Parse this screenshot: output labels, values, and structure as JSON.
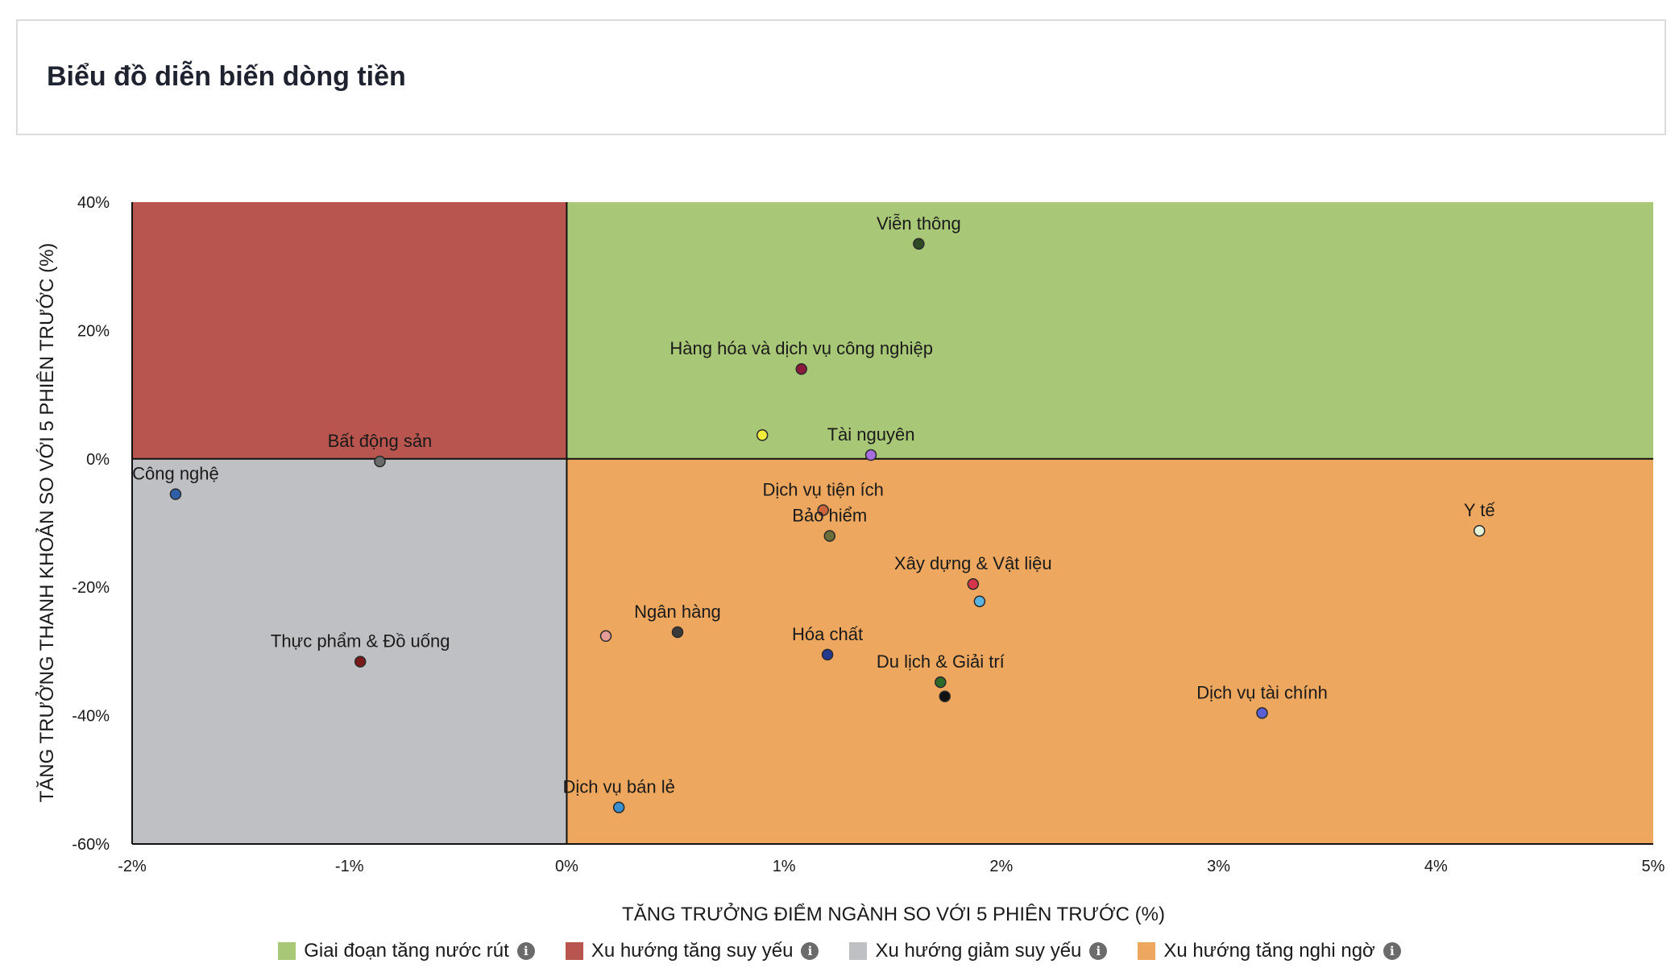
{
  "header": {
    "title": "Biểu đồ diễn biến dòng tiền"
  },
  "chart_data": {
    "type": "scatter",
    "title": "",
    "xlabel": "TĂNG TRƯỞNG ĐIỂM NGÀNH SO VỚI 5 PHIÊN TRƯỚC (%)",
    "ylabel": "TĂNG TRƯỞNG THANH KHOẢN SO VỚI 5 PHIÊN TRƯỚC (%)",
    "xlim": [
      -2,
      5
    ],
    "ylim": [
      -60,
      40
    ],
    "x_ticks": [
      -2,
      -1,
      0,
      1,
      2,
      3,
      4,
      5
    ],
    "x_tick_labels": [
      "-2%",
      "-1%",
      "0%",
      "1%",
      "2%",
      "3%",
      "4%",
      "5%"
    ],
    "y_ticks": [
      40,
      20,
      0,
      -20,
      -40,
      -60
    ],
    "y_tick_labels": [
      "40%",
      "20%",
      "0%",
      "-20%",
      "-40%",
      "-60%"
    ],
    "grid": false,
    "legend_position": "bottom",
    "quadrants": [
      {
        "name": "Giai đoạn tăng nước rút",
        "color": "#a9c877",
        "x_range": [
          0,
          5
        ],
        "y_range": [
          0,
          40
        ]
      },
      {
        "name": "Xu hướng tăng suy yếu",
        "color": "#b8554e",
        "x_range": [
          -2,
          0
        ],
        "y_range": [
          0,
          40
        ]
      },
      {
        "name": "Xu hướng giảm suy yếu",
        "color": "#bfc0c4",
        "x_range": [
          -2,
          0
        ],
        "y_range": [
          -60,
          0
        ]
      },
      {
        "name": "Xu hướng tăng nghi ngờ",
        "color": "#eda75e",
        "x_range": [
          0,
          5
        ],
        "y_range": [
          -60,
          0
        ]
      }
    ],
    "points": [
      {
        "label": "Viễn thông",
        "x": 1.62,
        "y": 33.5,
        "color": "#2e4a26"
      },
      {
        "label": "Hàng hóa và dịch vụ công nghiệp",
        "x": 1.08,
        "y": 14.0,
        "color": "#8a1b3b"
      },
      {
        "label": "",
        "x": 0.9,
        "y": 3.7,
        "color": "#f0ee3a"
      },
      {
        "label": "Tài nguyên",
        "x": 1.4,
        "y": 0.6,
        "color": "#a86ee0"
      },
      {
        "label": "Bất động sản",
        "x": -0.86,
        "y": -0.4,
        "color": "#6a6a6a"
      },
      {
        "label": "Công nghệ",
        "x": -1.8,
        "y": -5.5,
        "color": "#2f5fa8"
      },
      {
        "label": "Dịch vụ tiện ích",
        "x": 1.18,
        "y": -8.0,
        "color": "#c9643c"
      },
      {
        "label": "Bảo hiểm",
        "x": 1.21,
        "y": -12.0,
        "color": "#6b6f3a"
      },
      {
        "label": "Y tế",
        "x": 4.2,
        "y": -11.2,
        "color": "#e6f2d6"
      },
      {
        "label": "Xây dựng & Vật liệu",
        "x": 1.87,
        "y": -19.5,
        "color": "#d6364a"
      },
      {
        "label": "",
        "x": 1.9,
        "y": -22.2,
        "color": "#5ab3de"
      },
      {
        "label": "Ngân hàng",
        "x": 0.51,
        "y": -27.0,
        "color": "#3a3a3a"
      },
      {
        "label": "",
        "x": 0.18,
        "y": -27.6,
        "color": "#e39c96"
      },
      {
        "label": "Hóa chất",
        "x": 1.2,
        "y": -30.5,
        "color": "#233a8f"
      },
      {
        "label": "Thực phẩm & Đồ uống",
        "x": -0.95,
        "y": -31.6,
        "color": "#7a1a1a"
      },
      {
        "label": "Du lịch & Giải trí",
        "x": 1.72,
        "y": -34.8,
        "color": "#2e6b2b"
      },
      {
        "label": "",
        "x": 1.74,
        "y": -37.0,
        "color": "#111111"
      },
      {
        "label": "Dịch vụ tài chính",
        "x": 3.2,
        "y": -39.6,
        "color": "#5b5fd6"
      },
      {
        "label": "Dịch vụ bán lẻ",
        "x": 0.24,
        "y": -54.3,
        "color": "#3a8fcf"
      }
    ]
  },
  "legend": [
    {
      "label": "Giai đoạn tăng nước rút",
      "color": "#a9c877"
    },
    {
      "label": "Xu hướng tăng suy yếu",
      "color": "#b8554e"
    },
    {
      "label": "Xu hướng giảm suy yếu",
      "color": "#bfc0c4"
    },
    {
      "label": "Xu hướng tăng nghi ngờ",
      "color": "#eda75e"
    }
  ],
  "info_icon": "info-icon"
}
